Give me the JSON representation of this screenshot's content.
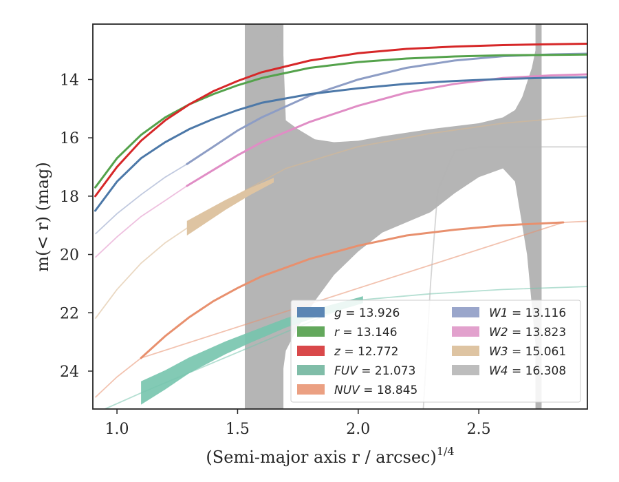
{
  "chart_data": {
    "type": "line",
    "title": "",
    "xlabel": "(Semi-major axis r / arcsec)",
    "xlabel_sup": "1/4",
    "ylabel": "m(< r) (mag)",
    "xlim": [
      0.9,
      2.95
    ],
    "ylim": [
      25.3,
      12.1
    ],
    "y_inverted": true,
    "grid": false,
    "legend_placement": "lower-right",
    "xticks": [
      "1.0",
      "1.5",
      "2.0",
      "2.5"
    ],
    "xtick_values": [
      1.0,
      1.5,
      2.0,
      2.5
    ],
    "yticks": [
      "14",
      "16",
      "18",
      "20",
      "22",
      "24"
    ],
    "ytick_values": [
      14,
      16,
      18,
      20,
      22,
      24
    ],
    "series": [
      {
        "key": "g",
        "name": "g",
        "total": "13.926",
        "color": "#4c78a8",
        "fill": "#5a86b4",
        "x": [
          0.91,
          1.0,
          1.1,
          1.2,
          1.3,
          1.4,
          1.5,
          1.6,
          1.8,
          2.0,
          2.2,
          2.4,
          2.6,
          2.8,
          2.95
        ],
        "y": [
          18.5,
          17.5,
          16.7,
          16.15,
          15.7,
          15.35,
          15.05,
          14.8,
          14.5,
          14.3,
          14.15,
          14.05,
          13.98,
          13.94,
          13.926
        ]
      },
      {
        "key": "r",
        "name": "r",
        "total": "13.146",
        "color": "#54a24b",
        "fill": "#63a85c",
        "x": [
          0.91,
          1.0,
          1.1,
          1.2,
          1.3,
          1.4,
          1.5,
          1.6,
          1.8,
          2.0,
          2.2,
          2.4,
          2.6,
          2.8,
          2.95
        ],
        "y": [
          17.7,
          16.7,
          15.9,
          15.3,
          14.85,
          14.5,
          14.2,
          13.95,
          13.6,
          13.4,
          13.28,
          13.21,
          13.17,
          13.155,
          13.146
        ]
      },
      {
        "key": "z",
        "name": "z",
        "total": "12.772",
        "color": "#d62728",
        "fill": "#d9484a",
        "x": [
          0.91,
          1.0,
          1.1,
          1.2,
          1.3,
          1.4,
          1.5,
          1.6,
          1.8,
          2.0,
          2.2,
          2.4,
          2.6,
          2.8,
          2.95
        ],
        "y": [
          18.0,
          17.0,
          16.1,
          15.4,
          14.85,
          14.4,
          14.05,
          13.75,
          13.35,
          13.1,
          12.95,
          12.87,
          12.82,
          12.79,
          12.772
        ]
      },
      {
        "key": "FUV",
        "name": "FUV",
        "total": "21.073",
        "color": "#76c4ad",
        "fill": "#80bda8",
        "x": [
          1.1,
          1.2,
          1.3,
          1.45,
          1.55,
          1.7,
          1.85,
          2.0,
          2.02
        ],
        "y": [
          24.75,
          24.3,
          23.8,
          23.2,
          22.85,
          22.35,
          21.95,
          21.6,
          21.55
        ]
      },
      {
        "key": "NUV",
        "name": "NUV",
        "total": "18.845",
        "color": "#e8906e",
        "fill": "#eba082",
        "x": [
          1.1,
          1.2,
          1.3,
          1.4,
          1.5,
          1.6,
          1.8,
          2.0,
          2.2,
          2.4,
          2.6,
          2.85
        ],
        "y": [
          23.55,
          22.8,
          22.15,
          21.6,
          21.15,
          20.75,
          20.15,
          19.7,
          19.35,
          19.15,
          19.0,
          18.9
        ]
      },
      {
        "key": "W1",
        "name": "W1",
        "total": "13.116",
        "color": "#8d9dc5",
        "fill": "#9aa6cb",
        "x": [
          1.29,
          1.4,
          1.5,
          1.6,
          1.8,
          2.0,
          2.2,
          2.4,
          2.6,
          2.8,
          2.95
        ],
        "y": [
          16.9,
          16.3,
          15.75,
          15.3,
          14.55,
          14.0,
          13.6,
          13.35,
          13.2,
          13.14,
          13.116
        ]
      },
      {
        "key": "W2",
        "name": "W2",
        "total": "13.823",
        "color": "#e08dc5",
        "fill": "#e2a1cd",
        "x": [
          1.29,
          1.4,
          1.5,
          1.6,
          1.8,
          2.0,
          2.2,
          2.4,
          2.6,
          2.8,
          2.95
        ],
        "y": [
          17.65,
          17.1,
          16.6,
          16.15,
          15.45,
          14.9,
          14.45,
          14.15,
          13.95,
          13.86,
          13.823
        ]
      },
      {
        "key": "W3",
        "name": "W3",
        "total": "15.061",
        "color": "#d9b88f",
        "fill": "#dec4a2",
        "x": [
          1.29,
          1.35,
          1.45,
          1.55,
          1.65
        ],
        "y": [
          19.1,
          18.8,
          18.3,
          17.85,
          17.45
        ],
        "band_half": [
          0.25,
          0.22,
          0.17,
          0.12,
          0.08
        ]
      },
      {
        "key": "W4",
        "name": "W4",
        "total": "16.308",
        "color": "#b3b3b3",
        "fill": "#bdbdbd"
      }
    ],
    "faint_curves": [
      {
        "key": "g",
        "x": [
          0.91,
          1.0,
          1.1
        ],
        "y": [
          18.5,
          17.5,
          16.7
        ]
      },
      {
        "key": "W1",
        "x": [
          0.91,
          1.0,
          1.1,
          1.2,
          1.29
        ],
        "y": [
          19.3,
          18.6,
          17.95,
          17.35,
          16.9
        ]
      },
      {
        "key": "W2",
        "x": [
          0.91,
          1.0,
          1.1,
          1.2,
          1.29
        ],
        "y": [
          20.1,
          19.4,
          18.7,
          18.15,
          17.65
        ]
      },
      {
        "key": "W3",
        "x": [
          0.91,
          1.0,
          1.1,
          1.2,
          1.29,
          1.5,
          1.7,
          2.0,
          2.3,
          2.6,
          2.95
        ],
        "y": [
          22.2,
          21.2,
          20.3,
          19.6,
          19.1,
          17.95,
          17.05,
          16.3,
          15.85,
          15.5,
          15.25
        ]
      },
      {
        "key": "NUV",
        "x": [
          0.91,
          1.0,
          1.1,
          2.85,
          2.95
        ],
        "y": [
          24.9,
          24.2,
          23.55,
          18.9,
          18.86
        ]
      },
      {
        "key": "FUV",
        "x": [
          0.95,
          1.1,
          2.02,
          2.3,
          2.6,
          2.95
        ],
        "y": [
          25.3,
          24.75,
          21.55,
          21.35,
          21.2,
          21.1
        ]
      },
      {
        "key": "W4",
        "x": [
          2.27,
          2.3,
          2.33,
          2.4,
          2.5,
          2.6,
          2.7,
          2.95
        ],
        "y": [
          25.3,
          21.0,
          17.8,
          16.45,
          16.32,
          16.31,
          16.31,
          16.31
        ]
      }
    ],
    "w4_band": {
      "upper_x": [
        1.53,
        1.65,
        1.69,
        1.7,
        1.75,
        1.82,
        1.9,
        2.0,
        2.1,
        2.3,
        2.5,
        2.6,
        2.65,
        2.68,
        2.72,
        2.74,
        2.76
      ],
      "upper_y": [
        12.1,
        12.1,
        13.2,
        15.4,
        15.7,
        16.05,
        16.15,
        16.1,
        15.95,
        15.7,
        15.5,
        15.3,
        15.05,
        14.6,
        13.6,
        12.8,
        12.1
      ],
      "lower_x": [
        1.53,
        1.66,
        1.68,
        1.7,
        1.75,
        1.82,
        1.9,
        2.0,
        2.1,
        2.3,
        2.4,
        2.5,
        2.6,
        2.65,
        2.7,
        2.76
      ],
      "lower_y": [
        25.3,
        25.3,
        24.5,
        23.3,
        22.5,
        21.6,
        20.7,
        19.9,
        19.25,
        18.55,
        17.9,
        17.35,
        17.05,
        17.5,
        20.0,
        25.3
      ],
      "column_x": [
        1.53,
        1.69
      ],
      "strip_x": [
        2.735,
        2.76
      ]
    }
  }
}
